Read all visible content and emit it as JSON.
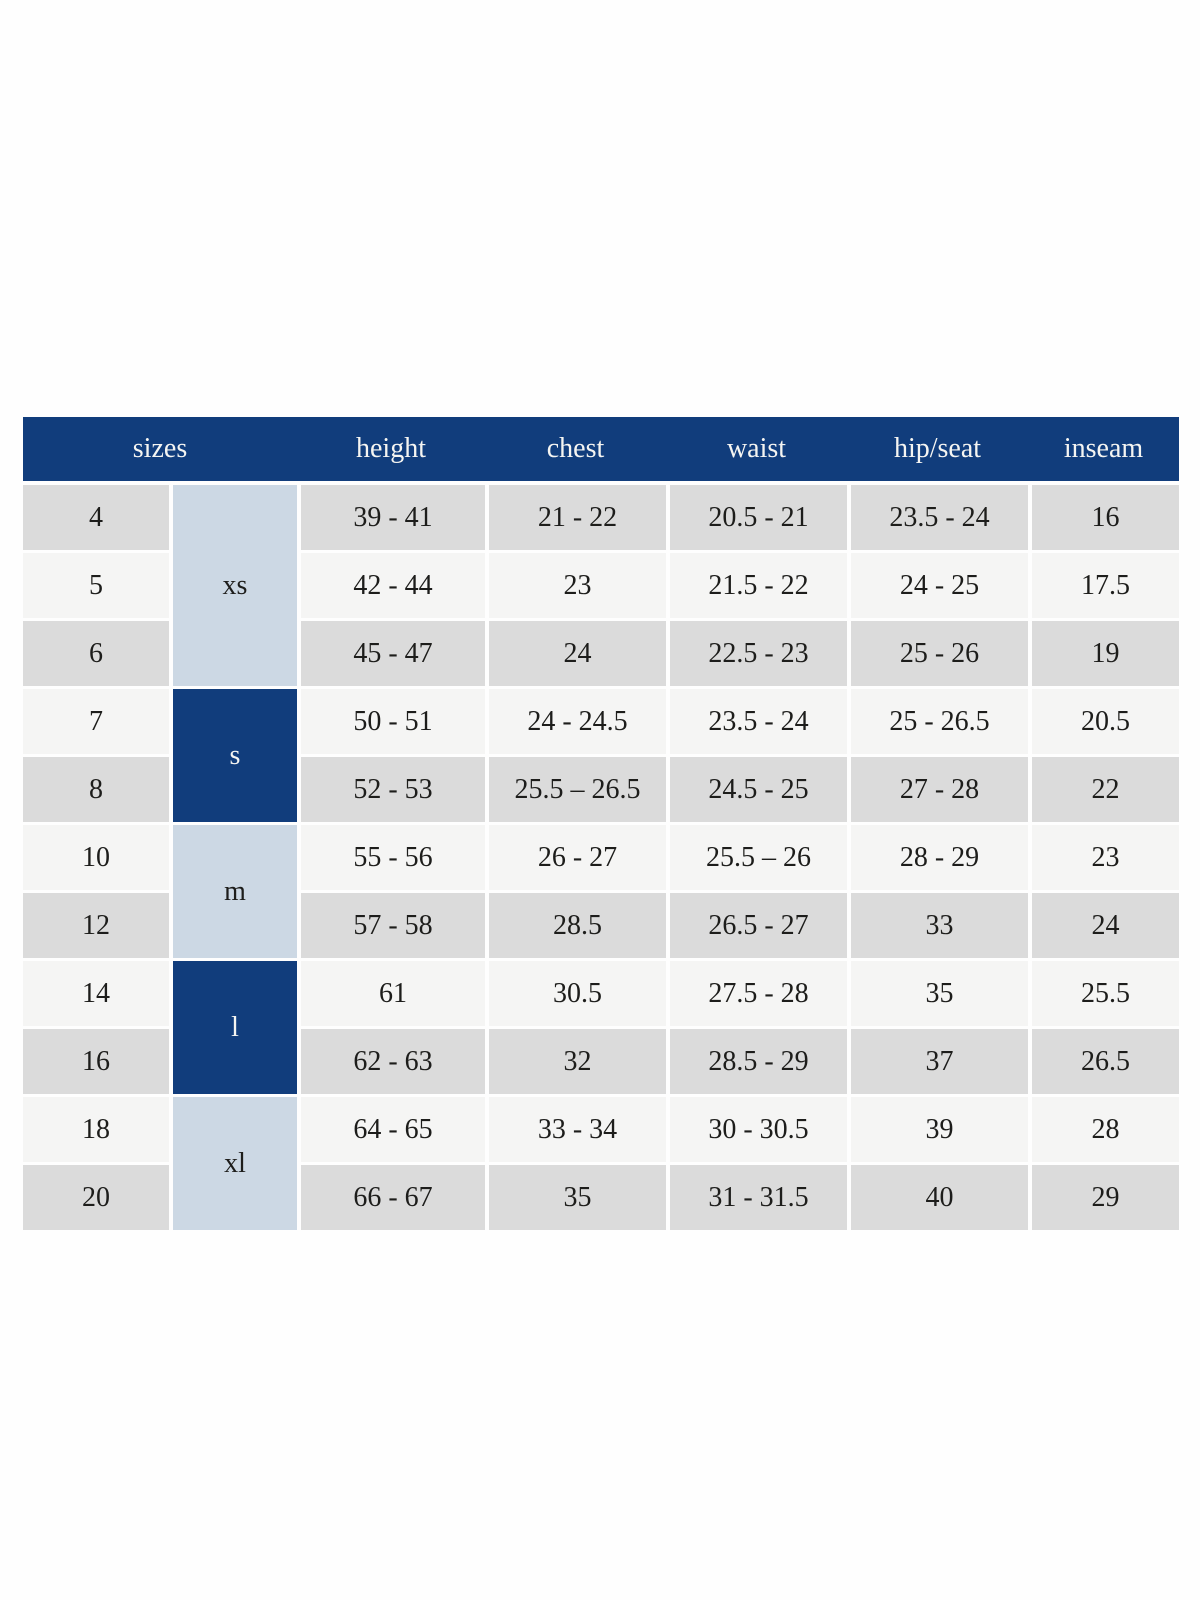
{
  "colors": {
    "page_bg": "#fefefe",
    "header_bg": "#113d7c",
    "header_text": "#f5f5f2",
    "group_light_bg": "#ccd8e4",
    "group_dark_bg": "#113d7c",
    "group_dark_text": "#f5f5f2",
    "row_gray_bg": "#dbdbdb",
    "row_light_bg": "#f5f5f4",
    "cell_text": "#1d1d1b"
  },
  "chart_data": {
    "type": "table",
    "header": [
      "sizes",
      "height",
      "chest",
      "waist",
      "hip/seat",
      "inseam"
    ],
    "size_groups": [
      {
        "label": "xs",
        "sizes": [
          "4",
          "5",
          "6"
        ]
      },
      {
        "label": "s",
        "sizes": [
          "7",
          "8"
        ]
      },
      {
        "label": "m",
        "sizes": [
          "10",
          "12"
        ]
      },
      {
        "label": "l",
        "sizes": [
          "14",
          "16"
        ]
      },
      {
        "label": "xl",
        "sizes": [
          "18",
          "20"
        ]
      }
    ],
    "rows": [
      {
        "size": "4",
        "height": "39 - 41",
        "chest": "21 - 22",
        "waist": "20.5 - 21",
        "hip_seat": "23.5 - 24",
        "inseam": "16"
      },
      {
        "size": "5",
        "height": "42 - 44",
        "chest": "23",
        "waist": "21.5 - 22",
        "hip_seat": "24 - 25",
        "inseam": "17.5"
      },
      {
        "size": "6",
        "height": "45 - 47",
        "chest": "24",
        "waist": "22.5 - 23",
        "hip_seat": "25 - 26",
        "inseam": "19"
      },
      {
        "size": "7",
        "height": "50 - 51",
        "chest": "24 - 24.5",
        "waist": "23.5 - 24",
        "hip_seat": "25 - 26.5",
        "inseam": "20.5"
      },
      {
        "size": "8",
        "height": "52 - 53",
        "chest": "25.5 – 26.5",
        "waist": "24.5 - 25",
        "hip_seat": "27 - 28",
        "inseam": "22"
      },
      {
        "size": "10",
        "height": "55 - 56",
        "chest": "26 - 27",
        "waist": "25.5 – 26",
        "hip_seat": "28 - 29",
        "inseam": "23"
      },
      {
        "size": "12",
        "height": "57 - 58",
        "chest": "28.5",
        "waist": "26.5 - 27",
        "hip_seat": "33",
        "inseam": "24"
      },
      {
        "size": "14",
        "height": "61",
        "chest": "30.5",
        "waist": "27.5 - 28",
        "hip_seat": "35",
        "inseam": "25.5"
      },
      {
        "size": "16",
        "height": "62 - 63",
        "chest": "32",
        "waist": "28.5 - 29",
        "hip_seat": "37",
        "inseam": "26.5"
      },
      {
        "size": "18",
        "height": "64 - 65",
        "chest": "33 - 34",
        "waist": "30 - 30.5",
        "hip_seat": "39",
        "inseam": "28"
      },
      {
        "size": "20",
        "height": "66 - 67",
        "chest": "35",
        "waist": "31 - 31.5",
        "hip_seat": "40",
        "inseam": "29"
      }
    ]
  }
}
